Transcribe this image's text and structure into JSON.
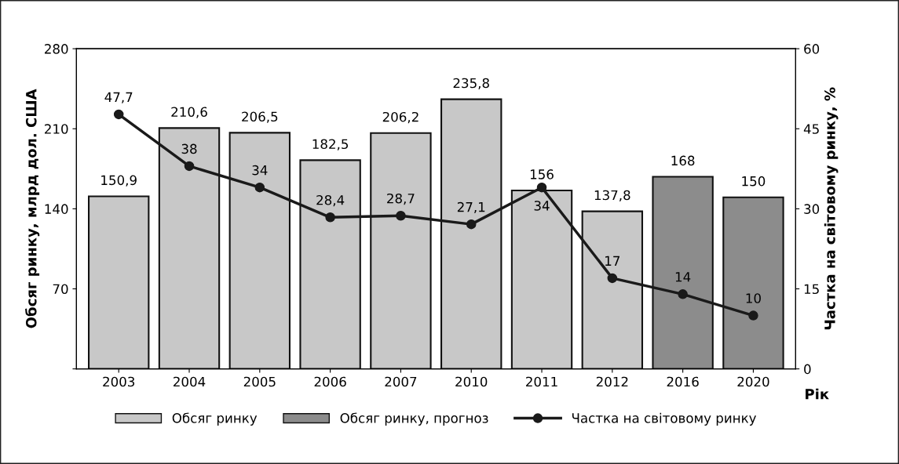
{
  "chart_data": {
    "type": "bar",
    "xlabel": "Рік",
    "ylabel": "Обсяг ринку, млрд дол. США",
    "y2label": "Частка на світовому ринку, %",
    "categories": [
      "2003",
      "2004",
      "2005",
      "2006",
      "2007",
      "2010",
      "2011",
      "2012",
      "2016",
      "2020"
    ],
    "series": [
      {
        "name": "Обсяг ринку",
        "color": "#c8c8c8",
        "values": [
          150.9,
          210.6,
          206.5,
          182.5,
          206.2,
          235.8,
          156,
          137.8,
          null,
          null
        ],
        "value_labels": [
          "150,9",
          "210,6",
          "206,5",
          "182,5",
          "206,2",
          "235,8",
          "156",
          "137,8",
          null,
          null
        ]
      },
      {
        "name": "Обсяг ринку, прогноз",
        "color": "#8c8c8c",
        "values": [
          null,
          null,
          null,
          null,
          null,
          null,
          null,
          null,
          168,
          150
        ],
        "value_labels": [
          null,
          null,
          null,
          null,
          null,
          null,
          null,
          null,
          "168",
          "150"
        ]
      },
      {
        "name": "Частка на світовому ринку",
        "type": "line",
        "axis": "y2",
        "color": "#1a1a1a",
        "marker": "circle",
        "line_style": "solid",
        "values": [
          47.7,
          38,
          34,
          28.4,
          28.7,
          27.1,
          34,
          17,
          14,
          10
        ],
        "value_labels": [
          "47,7",
          "38",
          "34",
          "28,4",
          "28,7",
          "27,1",
          "34",
          "17",
          "14",
          "10"
        ]
      }
    ],
    "ylim": [
      0,
      280
    ],
    "yticks": [
      {
        "value": 0,
        "label": null
      },
      70,
      140,
      210,
      280
    ],
    "y2lim": [
      0,
      60
    ],
    "y2ticks": [
      0,
      15,
      30,
      45,
      60
    ],
    "grid": false,
    "legend": "bottom"
  }
}
